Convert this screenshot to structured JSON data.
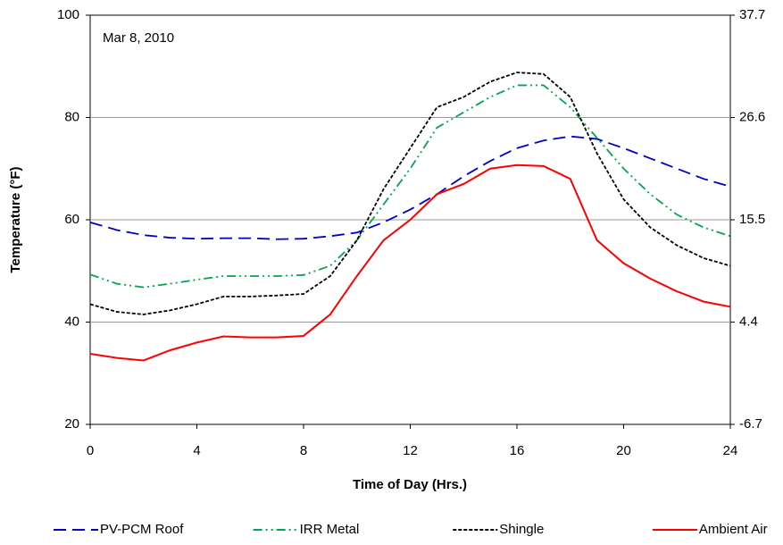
{
  "chart_data": {
    "type": "line",
    "annotation": "Mar 8, 2010",
    "xlabel": "Time of Day (Hrs.)",
    "ylabel": "Temperature (°F)",
    "x": [
      0,
      1,
      2,
      3,
      4,
      5,
      6,
      7,
      8,
      9,
      10,
      11,
      12,
      13,
      14,
      15,
      16,
      17,
      18,
      19,
      20,
      21,
      22,
      23,
      24
    ],
    "xlim": [
      0,
      24
    ],
    "xticks": [
      0,
      4,
      8,
      12,
      16,
      20,
      24
    ],
    "ylim": [
      20,
      100
    ],
    "yticks": [
      20,
      40,
      60,
      80,
      100
    ],
    "y2lim": [
      -6.7,
      37.7
    ],
    "y2ticks": [
      -6.7,
      4.4,
      15.5,
      26.6,
      37.7
    ],
    "grid": true,
    "legend": "bottom",
    "series": [
      {
        "name": "PV-PCM Roof",
        "color": "#0000cc",
        "dash": "long-dash",
        "values": [
          59.5,
          58,
          57,
          56.5,
          56.3,
          56.4,
          56.4,
          56.2,
          56.3,
          56.8,
          57.5,
          59.5,
          62,
          65,
          68.5,
          71.5,
          74,
          75.5,
          76.3,
          75.8,
          74,
          72,
          70,
          68,
          66.5
        ]
      },
      {
        "name": "IRR Metal",
        "color": "#00a650",
        "dash": "dash-dot",
        "values": [
          49.3,
          47.5,
          46.8,
          47.5,
          48.3,
          49,
          49,
          49,
          49.2,
          51,
          56,
          63,
          70,
          78,
          81,
          84,
          86.3,
          86.3,
          82,
          76,
          70,
          65,
          61,
          58.5,
          56.8
        ]
      },
      {
        "name": "Shingle",
        "color": "#000000",
        "dash": "short-dash",
        "values": [
          43.5,
          42,
          41.5,
          42.3,
          43.5,
          45,
          45,
          45.2,
          45.5,
          49,
          56,
          66,
          74,
          82,
          84,
          87,
          88.8,
          88.5,
          84,
          73,
          64,
          58.5,
          55,
          52.5,
          51
        ]
      },
      {
        "name": "Ambient Air",
        "color": "#ff0000",
        "dash": "solid",
        "values": [
          33.8,
          33,
          32.5,
          34.5,
          36,
          37.2,
          37,
          37,
          37.3,
          41.5,
          49,
          56,
          60,
          65,
          67,
          70,
          70.7,
          70.5,
          68,
          56,
          51.5,
          48.5,
          46,
          44,
          43
        ]
      }
    ]
  }
}
